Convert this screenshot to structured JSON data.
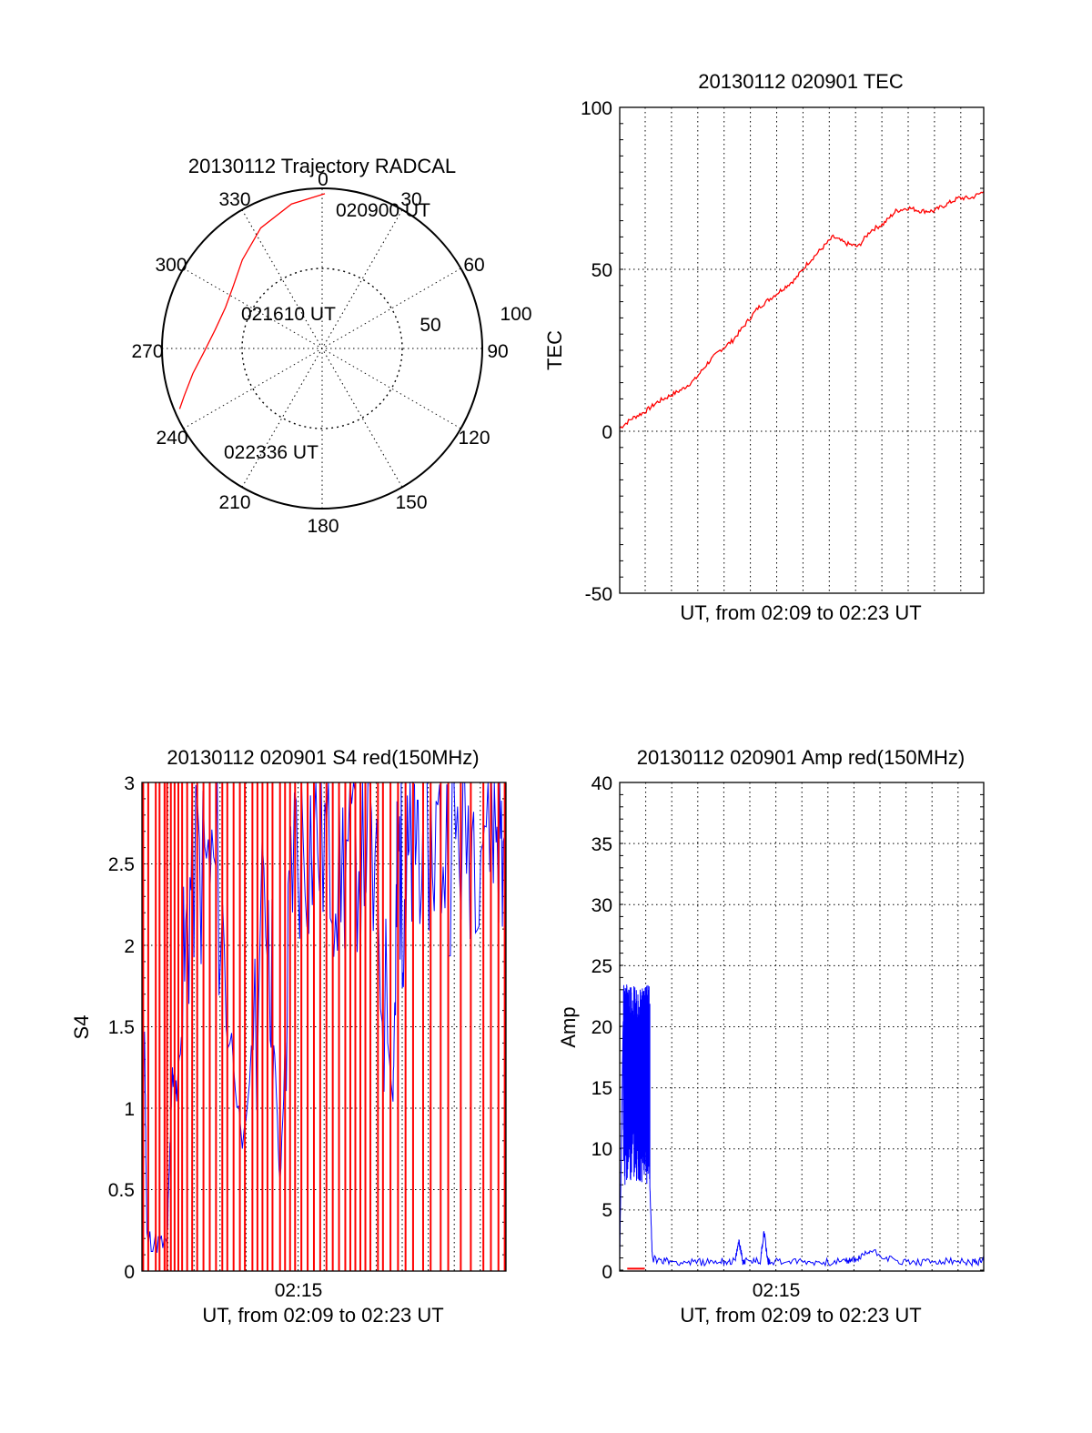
{
  "polar": {
    "title": "20130112 Trajectory RADCAL",
    "angle_labels": [
      "0",
      "30",
      "60",
      "90",
      "120",
      "150",
      "180",
      "210",
      "240",
      "270",
      "300",
      "330"
    ],
    "radial_labels": [
      "50",
      "100"
    ],
    "point_labels": [
      "020900 UT",
      "021610 UT",
      "022336 UT"
    ],
    "chart_data": {
      "type": "scatter",
      "coordinate_system": "polar (azimuth deg clockwise from north, elevation deg: 90 at center, 0 at rim)",
      "radial_axis_labels": [
        50,
        100
      ],
      "angles": [
        0,
        30,
        60,
        90,
        120,
        150,
        180,
        210,
        240,
        270,
        300,
        330
      ],
      "series": [
        {
          "color": "#ff0000",
          "points": [
            {
              "az": 1,
              "el": 3
            },
            {
              "az": 348,
              "el": 7
            },
            {
              "az": 333,
              "el": 14
            },
            {
              "az": 318,
              "el": 23
            },
            {
              "az": 305,
              "el": 29
            },
            {
              "az": 293,
              "el": 31
            },
            {
              "az": 280,
              "el": 29
            },
            {
              "az": 269,
              "el": 24
            },
            {
              "az": 259,
              "el": 16
            },
            {
              "az": 251,
              "el": 8
            },
            {
              "az": 247,
              "el": 3
            }
          ]
        }
      ],
      "annotations": [
        {
          "text": "020900 UT",
          "az": 1,
          "el": 3
        },
        {
          "text": "021610 UT",
          "az": 293,
          "el": 31
        },
        {
          "text": "022336 UT",
          "az": 247,
          "el": 3
        }
      ]
    }
  },
  "tec": {
    "title": "20130112 020901 TEC",
    "ylabel": "TEC",
    "xlabel": "UT, from 02:09 to 02:23 UT",
    "ytick_labels": [
      "100",
      "50",
      "0",
      "-50"
    ],
    "chart_data": {
      "type": "line",
      "title": "20130112 020901 TEC",
      "ylabel": "TEC",
      "xlabel": "UT, from 02:09 to 02:23 UT",
      "ylim": [
        -50,
        100
      ],
      "x_unit": "minutes after 02:09",
      "xlim": [
        0,
        14.5
      ],
      "grid": true,
      "series": [
        {
          "color": "#ff0000",
          "x": [
            0,
            0.5,
            1,
            1.5,
            2,
            2.5,
            3,
            3.5,
            4,
            4.5,
            5,
            5.5,
            6,
            6.5,
            7,
            7.5,
            8,
            8.5,
            9,
            9.5,
            10,
            10.5,
            11,
            11.5,
            12,
            12.5,
            13,
            13.5,
            14,
            14.5
          ],
          "y": [
            1,
            4,
            6,
            9,
            11,
            13,
            16,
            21,
            25,
            28,
            33,
            38,
            41,
            44,
            47,
            52,
            56,
            60,
            58,
            57,
            62,
            64,
            68,
            69,
            68,
            68,
            70,
            72,
            72,
            74
          ]
        }
      ]
    }
  },
  "s4": {
    "title": "20130112 020901 S4 red(150MHz)",
    "ylabel": "S4",
    "xlabel": "UT, from 02:09 to 02:23 UT",
    "xtick_label": "02:15",
    "ytick_labels": [
      "3",
      "2.5",
      "2",
      "1.5",
      "1",
      "0.5",
      "0"
    ],
    "chart_data": {
      "type": "line",
      "title": "20130112 020901 S4 red(150MHz)",
      "ylabel": "S4",
      "xlabel": "UT, from 02:09 to 02:23 UT",
      "ylim": [
        0,
        3
      ],
      "x_unit": "minutes after 02:09",
      "xlim": [
        0,
        14.5
      ],
      "xticks": [
        {
          "x": 6,
          "label": "02:15"
        }
      ],
      "grid": true,
      "series": [
        {
          "color": "#0000ff",
          "note": "dense oscillating trace",
          "x": [
            0,
            0.1,
            0.2,
            1.0,
            1.2,
            1.4,
            2,
            3,
            4,
            5,
            5.5,
            6,
            7,
            8,
            9,
            10,
            10.2,
            10.5,
            11,
            12,
            13,
            14,
            14.5
          ],
          "y": [
            0.2,
            1.5,
            0.2,
            0.15,
            1.2,
            1.1,
            2.5,
            2.4,
            0.7,
            2.4,
            0.5,
            2.6,
            2.7,
            2.5,
            2.7,
            1.1,
            2.6,
            2.3,
            2.8,
            2.6,
            2.7,
            2.9,
            2.4
          ]
        },
        {
          "color": "#ff0000",
          "note": "vertical spikes spanning 0 to 3",
          "x": [
            0.05,
            0.25,
            0.55,
            0.7,
            0.9,
            1.0,
            1.15,
            1.3,
            1.45,
            1.6,
            1.8,
            2.0,
            2.2,
            2.45,
            2.7,
            2.95,
            3.2,
            3.4,
            3.65,
            3.9,
            4.1,
            4.4,
            4.6,
            4.8,
            5.0,
            5.2,
            5.5,
            5.7,
            5.9,
            6.1,
            6.35,
            6.6,
            6.85,
            7.1,
            7.35,
            7.6,
            7.85,
            8.1,
            8.3,
            8.5,
            8.7,
            8.9,
            9.1,
            9.4,
            9.6,
            9.9,
            10.2,
            10.5,
            10.8,
            11.2,
            11.5,
            11.9,
            12.2,
            12.7,
            13.1,
            13.6,
            13.9,
            14.2,
            14.45
          ],
          "y": [
            3,
            3,
            3,
            3,
            3,
            3,
            3,
            3,
            3,
            3,
            3,
            3,
            3,
            3,
            3,
            3,
            3,
            3,
            3,
            3,
            3,
            3,
            3,
            3,
            3,
            3,
            3,
            3,
            3,
            3,
            3,
            3,
            3,
            3,
            3,
            3,
            3,
            3,
            3,
            3,
            3,
            3,
            3,
            3,
            3,
            3,
            3,
            3,
            3,
            3,
            3,
            3,
            3,
            3,
            3,
            3,
            3,
            3,
            3
          ]
        }
      ]
    }
  },
  "amp": {
    "title": "20130112 020901 Amp red(150MHz)",
    "ylabel": "Amp",
    "xlabel": "UT, from 02:09 to 02:23 UT",
    "xtick_label": "02:15",
    "ytick_labels": [
      "40",
      "35",
      "30",
      "25",
      "20",
      "15",
      "10",
      "5",
      "0"
    ],
    "chart_data": {
      "type": "line",
      "title": "20130112 020901 Amp red(150MHz)",
      "ylabel": "Amp",
      "xlabel": "UT, from 02:09 to 02:23 UT",
      "ylim": [
        0,
        40
      ],
      "x_unit": "minutes after 02:09",
      "xlim": [
        0,
        14.5
      ],
      "xticks": [
        {
          "x": 6,
          "label": "02:15"
        }
      ],
      "grid": true,
      "series": [
        {
          "color": "#0000ff",
          "note": "noisy band 7-23 (peak ~25.5) until ~1.2 min, then ~0.8 baseline",
          "x": [
            0,
            0.15,
            0.3,
            0.6,
            0.9,
            1.1,
            1.2,
            1.3,
            2,
            3,
            4,
            4.6,
            4.75,
            4.9,
            5,
            5.6,
            5.75,
            5.9,
            6,
            7,
            8,
            9,
            9.5,
            10,
            11,
            12,
            13,
            14,
            14.5
          ],
          "y": [
            1,
            22,
            25.5,
            15,
            20,
            22,
            7,
            1,
            0.8,
            0.7,
            0.8,
            0.8,
            2.5,
            0.8,
            0.8,
            0.8,
            3.3,
            0.8,
            0.8,
            0.8,
            0.7,
            0.8,
            1.0,
            1.7,
            0.8,
            0.7,
            0.8,
            0.7,
            0.8
          ]
        },
        {
          "color": "#ff0000",
          "x": [
            0.3,
            1.0
          ],
          "y": [
            0.2,
            0.2
          ]
        }
      ]
    }
  }
}
